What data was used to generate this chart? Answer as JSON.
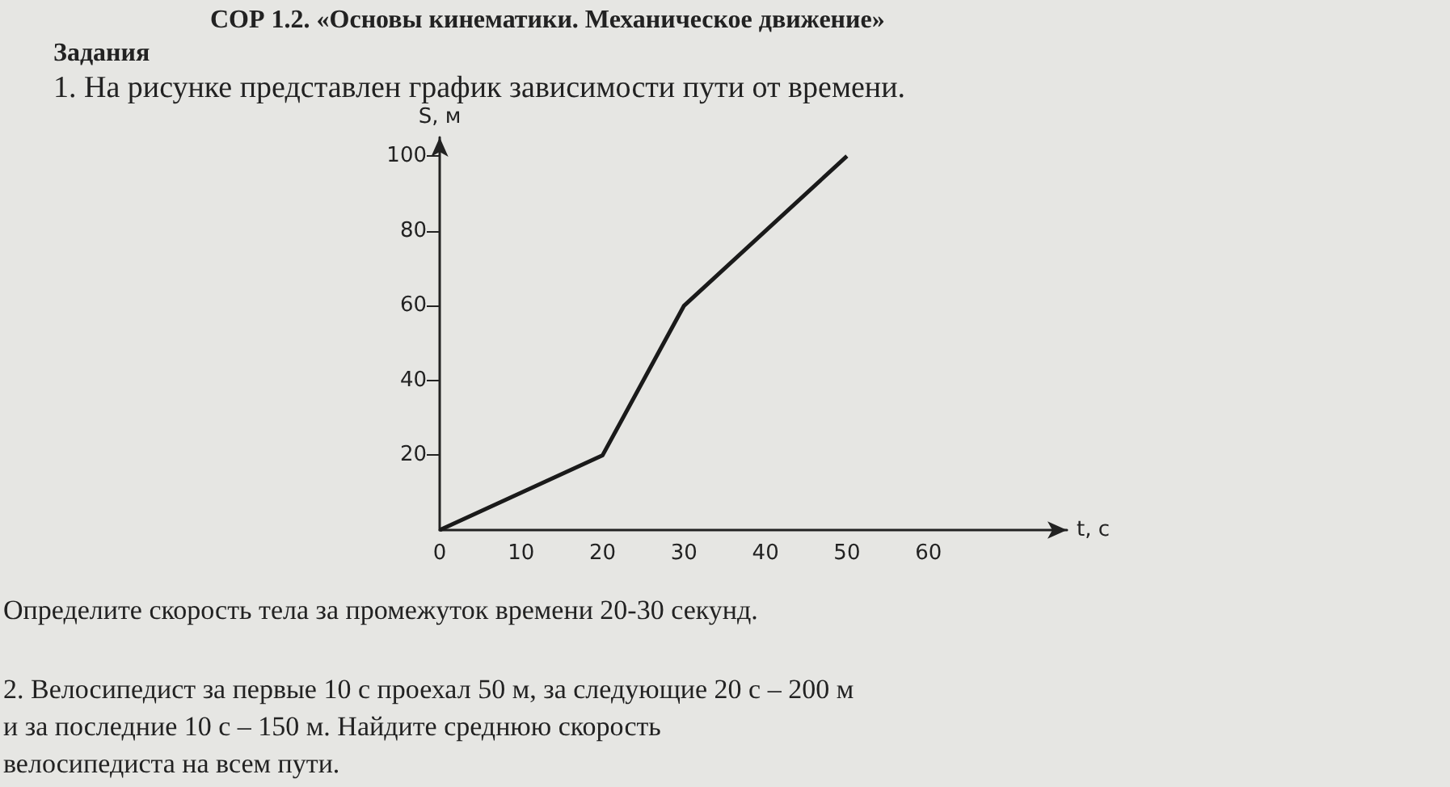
{
  "chart_data": {
    "type": "line",
    "title": "Задания",
    "subtitle": "1. На рисунке представлен график зависимости пути от времени.",
    "x": [
      0,
      20,
      30,
      50
    ],
    "series": [
      {
        "color": "#1a1a1a",
        "values": [
          0,
          20,
          60,
          100
        ]
      }
    ],
    "xlabel": "t, c",
    "ylabel": "S, м",
    "xlim": [
      0,
      77
    ],
    "ylim": [
      0,
      105
    ],
    "xticks": [
      0,
      10,
      20,
      30,
      40,
      50,
      60
    ],
    "yticks": [
      20,
      40,
      60,
      80,
      100
    ],
    "grid": false,
    "marker": "none",
    "line_style": "solid",
    "annotations": [
      "СОР 1.2. «Основы кинематики. Механическое движение»",
      "Определите скорость тела за промежуток времени 20-30 секунд.",
      "2. Велосипедист за первые 10 с проехал 50 м, за следующие 20 с – 200 м и за последние 10 с – 150 м. Найдите среднюю скорость велосипедиста на всем пути."
    ]
  }
}
